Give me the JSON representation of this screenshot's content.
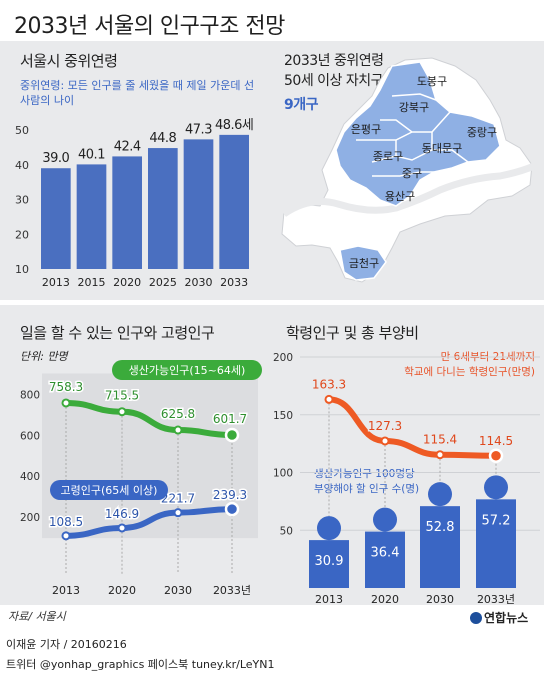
{
  "title": "2033년 서울의 인구구조 전망",
  "source": "자료/ 서울시",
  "credit": "이재윤 기자 / 20160216",
  "social": "트위터 @yonhap_graphics  페이스북 tuney.kr/LeYN1",
  "logo": "연합뉴스",
  "median": {
    "heading": "서울시 중위연령",
    "definition": "중위연령: 모든 인구를 줄 세웠을 때 제일 가운데 선 사람의 나이",
    "definition_line1": "중위연령: 모든 인구를 줄 세웠을 때 제일 가운데 선",
    "definition_line2": "사람의 나이"
  },
  "map": {
    "heading1": "2033년 중위연령",
    "heading2": "50세 이상 자치구",
    "count": "9개구",
    "districts": [
      "도봉구",
      "강북구",
      "은평구",
      "중랑구",
      "종로구",
      "동대문구",
      "중구",
      "용산구",
      "금천구"
    ]
  },
  "work": {
    "heading": "일을 할 수 있는 인구와 고령인구",
    "unit": "단위: 만명"
  },
  "dependency": {
    "heading": "학령인구 및 총 부양비",
    "note1": "만 6세부터 21세까지",
    "note2": "학교에 다니는 학령인구(만명)",
    "bar_note1": "생산가능인구 100명당",
    "bar_note2": "부양해야 할 인구 수(명)"
  },
  "chart_data": [
    {
      "type": "bar",
      "title": "서울시 중위연령",
      "categories": [
        "2013",
        "2015",
        "2020",
        "2025",
        "2030",
        "2033"
      ],
      "values": [
        39.0,
        40.1,
        42.4,
        44.8,
        47.3,
        48.6
      ],
      "value_labels": [
        "39.0",
        "40.1",
        "42.4",
        "44.8",
        "47.3",
        "48.6세"
      ],
      "ylim": [
        10,
        50
      ],
      "yticks": [
        "10",
        "20",
        "30",
        "40",
        "50"
      ],
      "color": "#4a6fc0"
    },
    {
      "type": "line",
      "title": "일을 할 수 있는 인구와 고령인구",
      "categories": [
        "2013",
        "2020",
        "2030",
        "2033년"
      ],
      "ylim": [
        0,
        900
      ],
      "yticks": [
        "200",
        "400",
        "600",
        "800"
      ],
      "series": [
        {
          "name": "생산가능인구(15~64세)",
          "values": [
            758.3,
            715.5,
            625.8,
            601.7
          ],
          "labels": [
            "758.3",
            "715.5",
            "625.8",
            "601.7"
          ],
          "color": "#3bab3b"
        },
        {
          "name": "고령인구(65세 이상)",
          "values": [
            108.5,
            146.9,
            221.7,
            239.3
          ],
          "labels": [
            "108.5",
            "146.9",
            "221.7",
            "239.3"
          ],
          "color": "#3a66c4"
        }
      ]
    },
    {
      "type": "line",
      "title": "학령인구",
      "categories": [
        "2013",
        "2020",
        "2030",
        "2033년"
      ],
      "ylim": [
        0,
        200
      ],
      "yticks": [
        "0",
        "50",
        "100",
        "150",
        "200"
      ],
      "series": [
        {
          "name": "학령인구(만명)",
          "values": [
            163.3,
            127.3,
            115.4,
            114.5
          ],
          "labels": [
            "163.3",
            "127.3",
            "115.4",
            "114.5"
          ],
          "color": "#ee5a24"
        }
      ]
    },
    {
      "type": "bar",
      "title": "총 부양비",
      "categories": [
        "2013",
        "2020",
        "2030",
        "2033년"
      ],
      "values": [
        30.9,
        36.4,
        52.8,
        57.2
      ],
      "value_labels": [
        "30.9",
        "36.4",
        "52.8",
        "57.2"
      ],
      "color": "#3a66c4"
    }
  ],
  "colors": {
    "panel": "#e9eaec",
    "map_fill": "#ffffff",
    "map_highlight": "#8fb0e4",
    "river": "#e9eaec"
  }
}
